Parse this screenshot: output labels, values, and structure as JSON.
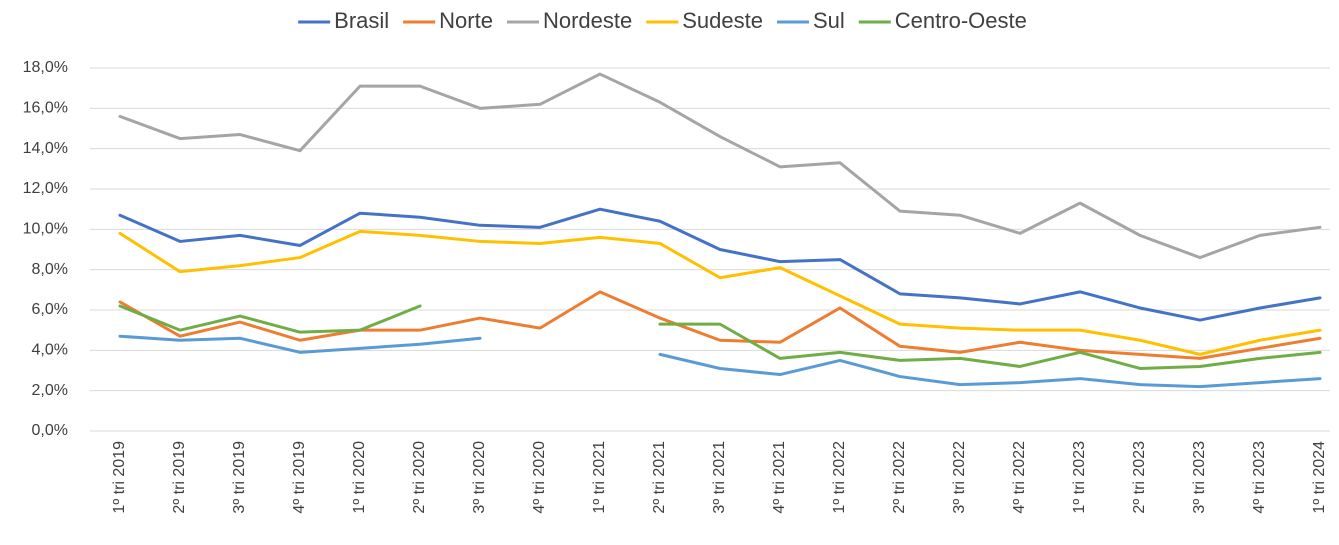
{
  "chart_data": {
    "type": "line",
    "categories": [
      "1º tri 2019",
      "2º tri 2019",
      "3º tri 2019",
      "4º tri 2019",
      "1º tri 2020",
      "2º tri 2020",
      "3º tri 2020",
      "4º tri 2020",
      "1º tri 2021",
      "2º tri 2021",
      "3º tri 2021",
      "4º tri 2021",
      "1º tri 2022",
      "2º tri 2022",
      "3º tri 2022",
      "4º tri 2022",
      "1º tri 2023",
      "2º tri 2023",
      "3º tri 2023",
      "4º tri 2023",
      "1º tri 2024"
    ],
    "series": [
      {
        "name": "Brasil",
        "color": "#4472c4",
        "values": [
          10.7,
          9.4,
          9.7,
          9.2,
          10.8,
          10.6,
          10.2,
          10.1,
          11.0,
          10.4,
          9.0,
          8.4,
          8.5,
          6.8,
          6.6,
          6.3,
          6.9,
          6.1,
          5.5,
          6.1,
          6.6
        ]
      },
      {
        "name": "Norte",
        "color": "#ed7d31",
        "values": [
          6.4,
          4.7,
          5.4,
          4.5,
          5.0,
          5.0,
          5.6,
          5.1,
          6.9,
          5.6,
          4.5,
          4.4,
          6.1,
          4.2,
          3.9,
          4.4,
          4.0,
          3.8,
          3.6,
          4.1,
          4.6
        ]
      },
      {
        "name": "Nordeste",
        "color": "#a5a5a5",
        "values": [
          15.6,
          14.5,
          14.7,
          13.9,
          17.1,
          17.1,
          16.0,
          16.2,
          17.7,
          16.3,
          14.6,
          13.1,
          13.3,
          10.9,
          10.7,
          9.8,
          11.3,
          9.7,
          8.6,
          9.7,
          10.1
        ]
      },
      {
        "name": "Sudeste",
        "color": "#ffc000",
        "values": [
          9.8,
          7.9,
          8.2,
          8.6,
          9.9,
          9.7,
          9.4,
          9.3,
          9.6,
          9.3,
          7.6,
          8.1,
          6.7,
          5.3,
          5.1,
          5.0,
          5.0,
          4.5,
          3.8,
          4.5,
          5.0
        ]
      },
      {
        "name": "Sul",
        "color": "#5b9bd5",
        "values": [
          4.7,
          4.5,
          4.6,
          3.9,
          4.1,
          4.3,
          4.6,
          null,
          null,
          3.8,
          3.1,
          2.8,
          3.5,
          2.7,
          2.3,
          2.4,
          2.6,
          2.3,
          2.2,
          2.4,
          2.6
        ]
      },
      {
        "name": "Centro-Oeste",
        "color": "#70ad47",
        "values": [
          6.2,
          5.0,
          5.7,
          4.9,
          5.0,
          6.2,
          null,
          null,
          null,
          5.3,
          5.3,
          3.6,
          3.9,
          3.5,
          3.6,
          3.2,
          3.9,
          3.1,
          3.2,
          3.6,
          3.9
        ]
      }
    ],
    "ylim": [
      0,
      18
    ],
    "yticks": [
      {
        "value": 0,
        "label": "0,0%"
      },
      {
        "value": 2,
        "label": "2,0%"
      },
      {
        "value": 4,
        "label": "4,0%"
      },
      {
        "value": 6,
        "label": "6,0%"
      },
      {
        "value": 8,
        "label": "8,0%"
      },
      {
        "value": 10,
        "label": "10,0%"
      },
      {
        "value": 12,
        "label": "12,0%"
      },
      {
        "value": 14,
        "label": "14,0%"
      },
      {
        "value": 16,
        "label": "16,0%"
      },
      {
        "value": 18,
        "label": "18,0%"
      }
    ],
    "grid": true,
    "legend": "top"
  }
}
